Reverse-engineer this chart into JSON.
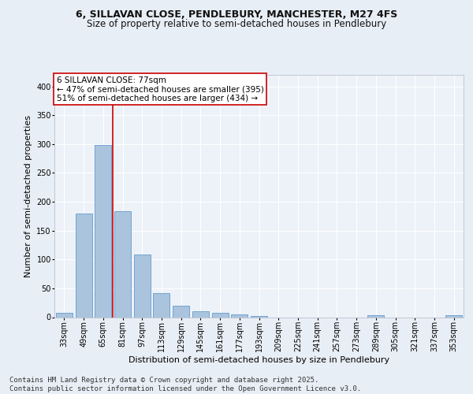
{
  "title_line1": "6, SILLAVAN CLOSE, PENDLEBURY, MANCHESTER, M27 4FS",
  "title_line2": "Size of property relative to semi-detached houses in Pendlebury",
  "xlabel": "Distribution of semi-detached houses by size in Pendlebury",
  "ylabel": "Number of semi-detached properties",
  "categories": [
    "33sqm",
    "49sqm",
    "65sqm",
    "81sqm",
    "97sqm",
    "113sqm",
    "129sqm",
    "145sqm",
    "161sqm",
    "177sqm",
    "193sqm",
    "209sqm",
    "225sqm",
    "241sqm",
    "257sqm",
    "273sqm",
    "289sqm",
    "305sqm",
    "321sqm",
    "337sqm",
    "353sqm"
  ],
  "values": [
    8,
    180,
    298,
    184,
    108,
    42,
    20,
    10,
    7,
    5,
    2,
    0,
    0,
    0,
    0,
    0,
    3,
    0,
    0,
    0,
    4
  ],
  "bar_color": "#aac4de",
  "bar_edge_color": "#6699cc",
  "vline_color": "#cc0000",
  "vline_x": 2.5,
  "annotation_box_text": "6 SILLAVAN CLOSE: 77sqm\n← 47% of semi-detached houses are smaller (395)\n51% of semi-detached houses are larger (434) →",
  "annotation_box_color": "#ffffff",
  "annotation_box_edge_color": "#cc0000",
  "footnote": "Contains HM Land Registry data © Crown copyright and database right 2025.\nContains public sector information licensed under the Open Government Licence v3.0.",
  "ylim": [
    0,
    420
  ],
  "yticks": [
    0,
    50,
    100,
    150,
    200,
    250,
    300,
    350,
    400
  ],
  "bg_color": "#e8eef5",
  "plot_bg_color": "#edf2f8",
  "title_fontsize": 9,
  "subtitle_fontsize": 8.5,
  "axis_label_fontsize": 8,
  "tick_fontsize": 7,
  "annotation_fontsize": 7.5,
  "footnote_fontsize": 6.5
}
